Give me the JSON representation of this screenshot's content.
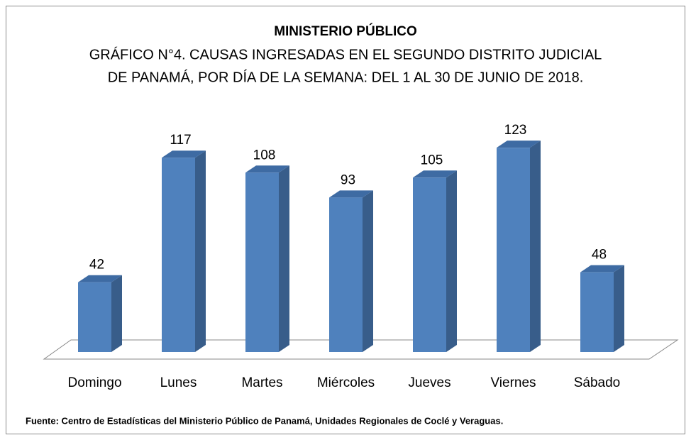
{
  "chart_data": {
    "type": "bar3d",
    "title": "MINISTERIO PÚBLICO",
    "subtitle": [
      "GRÁFICO N°4. CAUSAS INGRESADAS EN EL SEGUNDO DISTRITO JUDICIAL",
      "DE PANAMÁ, POR DÍA DE LA SEMANA:  DEL 1 AL 30 DE JUNIO DE 2018."
    ],
    "categories": [
      "Domingo",
      "Lunes",
      "Martes",
      "Miércoles",
      "Jueves",
      "Viernes",
      "Sábado"
    ],
    "values": [
      42,
      117,
      108,
      93,
      105,
      123,
      48
    ],
    "color": "#4f81bd",
    "source": "Fuente: Centro de Estadísticas del Ministerio Público de Panamá, Unidades Regionales de Coclé y Veraguas."
  }
}
